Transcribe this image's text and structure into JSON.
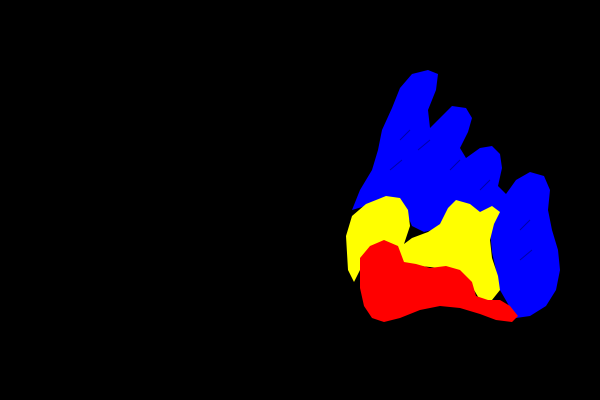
{
  "image": {
    "description_colors": {
      "background": "#000000",
      "blue": "#0000FF",
      "yellow": "#FFFF00",
      "red": "#FF0000"
    },
    "regions": [
      {
        "id": "blue-region",
        "color_key": "blue"
      },
      {
        "id": "yellow-region",
        "color_key": "yellow"
      },
      {
        "id": "red-region",
        "color_key": "red"
      }
    ]
  }
}
